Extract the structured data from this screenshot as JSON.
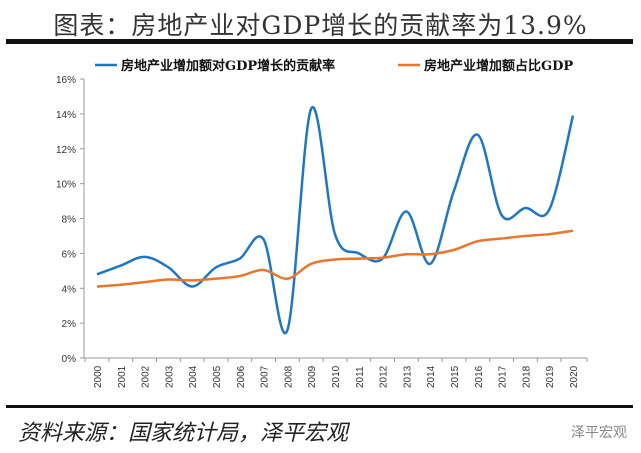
{
  "title": "图表：房地产业对GDP增长的贡献率为13.9%",
  "source": "资料来源：国家统计局，泽平宏观",
  "watermark": "泽平宏观",
  "chart_data": {
    "type": "line",
    "categories": [
      "2000",
      "2001",
      "2002",
      "2003",
      "2004",
      "2005",
      "2006",
      "2007",
      "2008",
      "2009",
      "2010",
      "2011",
      "2012",
      "2013",
      "2014",
      "2015",
      "2016",
      "2017",
      "2018",
      "2019",
      "2020"
    ],
    "series": [
      {
        "name": "房地产业增加额对GDP增长的贡献率",
        "color": "#1f77c4",
        "values": [
          4.8,
          5.3,
          5.8,
          5.2,
          4.1,
          5.2,
          5.7,
          6.8,
          1.6,
          14.3,
          7.1,
          6.0,
          5.7,
          8.4,
          5.4,
          9.6,
          12.8,
          8.2,
          8.6,
          8.5,
          13.9
        ]
      },
      {
        "name": "房地产业增加额占比GDP",
        "color": "#e8762c",
        "values": [
          4.1,
          4.2,
          4.35,
          4.5,
          4.45,
          4.55,
          4.7,
          5.05,
          4.55,
          5.4,
          5.65,
          5.7,
          5.75,
          5.95,
          5.95,
          6.2,
          6.7,
          6.85,
          7.0,
          7.1,
          7.3
        ]
      }
    ],
    "yticks": [
      "0%",
      "2%",
      "4%",
      "6%",
      "8%",
      "10%",
      "12%",
      "14%",
      "16%"
    ],
    "ylim": [
      0,
      16
    ],
    "legend": "top",
    "grid": false
  }
}
